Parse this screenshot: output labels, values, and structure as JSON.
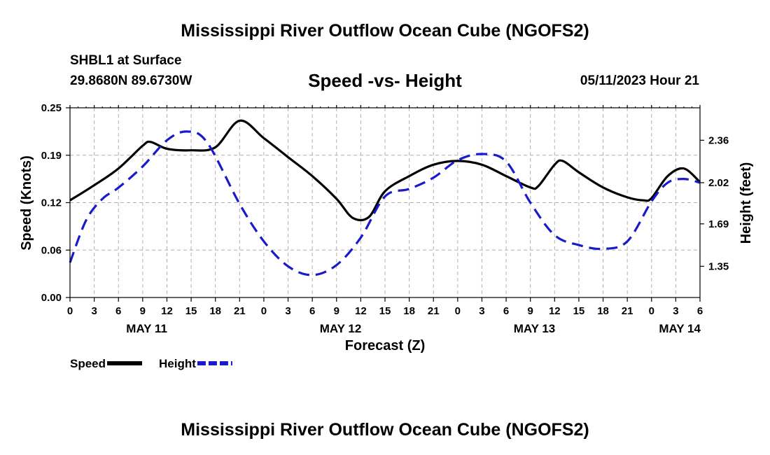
{
  "header": {
    "title": "Mississippi River Outflow Ocean Cube (NGOFS2)",
    "station": "SHBL1 at Surface",
    "coordinates": "29.8680N  89.6730W",
    "subtitle": "Speed -vs- Height",
    "datetime": "05/11/2023 Hour 21"
  },
  "footer": {
    "title": "Mississippi River Outflow Ocean Cube (NGOFS2)"
  },
  "chart_data": {
    "type": "line",
    "title": "Speed -vs- Height",
    "xlabel": "Forecast (Z)",
    "ylabel": "Speed (Knots)",
    "y2label": "Height (feet)",
    "x_range_hours": [
      0,
      78
    ],
    "ylim": [
      0.0,
      0.25
    ],
    "y2lim": [
      1.1,
      2.62
    ],
    "grid": true,
    "x_tick_labels": [
      "0",
      "3",
      "6",
      "9",
      "12",
      "15",
      "18",
      "21",
      "0",
      "3",
      "6",
      "9",
      "12",
      "15",
      "18",
      "21",
      "0",
      "3",
      "6",
      "9",
      "12",
      "15",
      "18",
      "21",
      "0",
      "3",
      "6"
    ],
    "x_tick_hours": [
      0,
      3,
      6,
      9,
      12,
      15,
      18,
      21,
      24,
      27,
      30,
      33,
      36,
      39,
      42,
      45,
      48,
      51,
      54,
      57,
      60,
      63,
      66,
      69,
      72,
      75,
      78
    ],
    "date_labels": [
      {
        "label": "MAY 11",
        "hour": 9.5
      },
      {
        "label": "MAY 12",
        "hour": 33.5
      },
      {
        "label": "MAY 13",
        "hour": 57.5
      },
      {
        "label": "MAY 14",
        "hour": 75.5
      }
    ],
    "y_tick_labels": [
      "0.00",
      "0.06",
      "0.12",
      "0.19",
      "0.25"
    ],
    "y_tick_values": [
      0.0,
      0.0625,
      0.125,
      0.1875,
      0.25
    ],
    "y2_tick_labels": [
      "1.35",
      "1.69",
      "2.02",
      "2.36"
    ],
    "y2_tick_values": [
      1.35,
      1.69,
      2.02,
      2.36
    ],
    "series": [
      {
        "name": "Speed",
        "axis": "left",
        "color": "#000000",
        "dash": "solid",
        "x": [
          0,
          3,
          6,
          9,
          10,
          12,
          15,
          18,
          21,
          24,
          27,
          30,
          33,
          35,
          37,
          39,
          42,
          45,
          48,
          51,
          54,
          57,
          58,
          60,
          61,
          63,
          66,
          69,
          71,
          72,
          74,
          76,
          78
        ],
        "y": [
          0.128,
          0.148,
          0.17,
          0.2,
          0.205,
          0.196,
          0.194,
          0.198,
          0.233,
          0.21,
          0.185,
          0.16,
          0.13,
          0.105,
          0.106,
          0.14,
          0.16,
          0.175,
          0.18,
          0.175,
          0.16,
          0.145,
          0.147,
          0.175,
          0.18,
          0.165,
          0.145,
          0.132,
          0.128,
          0.131,
          0.16,
          0.17,
          0.152
        ]
      },
      {
        "name": "Height",
        "axis": "right",
        "color": "#1a1acc",
        "dash": "dashed",
        "x": [
          0,
          2,
          4,
          6,
          9,
          12,
          14.5,
          17,
          21,
          24,
          27,
          30,
          33,
          36,
          39,
          42,
          45,
          48,
          51,
          54,
          57,
          60,
          63,
          66,
          69,
          72,
          74,
          76,
          78
        ],
        "y": [
          1.38,
          1.72,
          1.89,
          1.98,
          2.15,
          2.36,
          2.43,
          2.34,
          1.85,
          1.55,
          1.35,
          1.28,
          1.36,
          1.58,
          1.91,
          1.97,
          2.06,
          2.2,
          2.25,
          2.19,
          1.86,
          1.6,
          1.52,
          1.49,
          1.55,
          1.87,
          2.02,
          2.05,
          2.02
        ]
      }
    ],
    "legend": [
      {
        "label": "Speed",
        "color": "#000000",
        "dash": "solid"
      },
      {
        "label": "Height",
        "color": "#1a1acc",
        "dash": "dashed"
      }
    ],
    "legend_position": "bottom-left"
  }
}
